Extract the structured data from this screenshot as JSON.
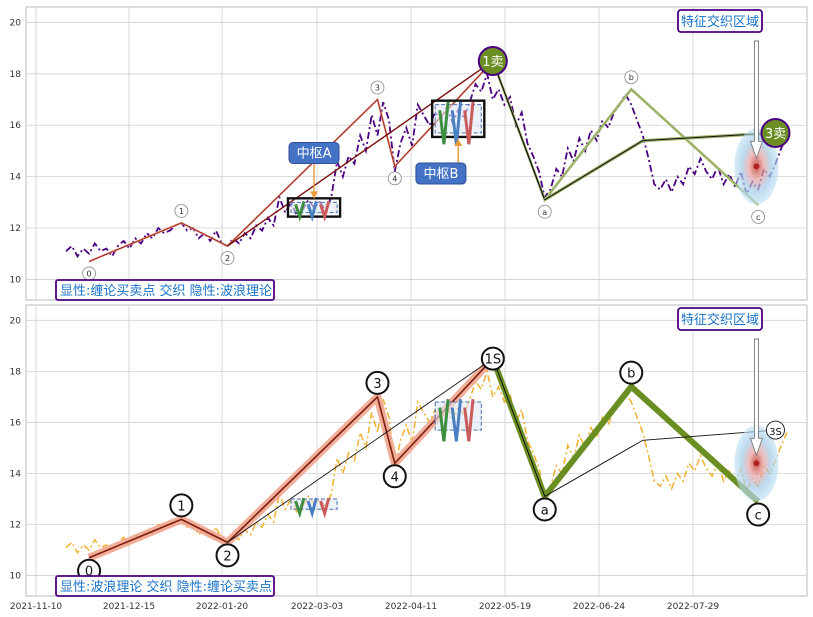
{
  "chart_data": {
    "type": "line",
    "x_ticks": [
      "2021-11-10",
      "2021-12-15",
      "2022-01-20",
      "2022-03-03",
      "2022-04-11",
      "2022-05-19",
      "2022-06-24",
      "2022-07-29"
    ],
    "y_ticks": [
      10,
      12,
      14,
      16,
      18,
      20
    ],
    "ylim": [
      9.2,
      20.6
    ],
    "panels": [
      {
        "id": "top",
        "caption": "显性:缠论买卖点 交织 隐性:波浪理论",
        "region_label": "特征交织区域",
        "price_series_color": "#4b0082",
        "wave_points": [
          {
            "label": "0",
            "x": 4,
            "y": 10.7
          },
          {
            "label": "1",
            "x": 20,
            "y": 12.2
          },
          {
            "label": "2",
            "x": 28,
            "y": 11.3
          },
          {
            "label": "3",
            "x": 54,
            "y": 17.0
          },
          {
            "label": "4",
            "x": 57,
            "y": 14.4
          },
          {
            "label": "1卖",
            "x": 74,
            "y": 18.5
          },
          {
            "label": "a",
            "x": 83,
            "y": 13.1
          },
          {
            "label": "b",
            "x": 98,
            "y": 17.4
          },
          {
            "label": "c",
            "x": 120,
            "y": 12.9
          },
          {
            "label": "3卖",
            "x": 123,
            "y": 15.7
          }
        ],
        "pivots": [
          {
            "label": "中枢A",
            "x_start": 39,
            "x_end": 47,
            "y_low": 12.6,
            "y_high": 13.0
          },
          {
            "label": "中枢B",
            "x_start": 64,
            "x_end": 72,
            "y_low": 15.7,
            "y_high": 16.8
          }
        ],
        "sell_points": [
          {
            "label": "1卖",
            "x": 74,
            "y": 18.5
          },
          {
            "label": "3卖",
            "x": 123,
            "y": 15.7
          }
        ]
      },
      {
        "id": "bottom",
        "caption": "显性:波浪理论 交织 隐性:缠论买卖点",
        "region_label": "特征交织区域",
        "price_series_color": "#f0b030",
        "wave_points": [
          {
            "label": "0",
            "x": 4,
            "y": 10.7
          },
          {
            "label": "1",
            "x": 20,
            "y": 12.2
          },
          {
            "label": "2",
            "x": 28,
            "y": 11.3
          },
          {
            "label": "3",
            "x": 54,
            "y": 17.0
          },
          {
            "label": "4",
            "x": 57,
            "y": 14.4
          },
          {
            "label": "1S",
            "x": 74,
            "y": 18.5
          },
          {
            "label": "a",
            "x": 83,
            "y": 13.1
          },
          {
            "label": "b",
            "x": 98,
            "y": 17.4
          },
          {
            "label": "c",
            "x": 120,
            "y": 12.9
          },
          {
            "label": "3S",
            "x": 123,
            "y": 15.7
          }
        ]
      }
    ],
    "price": [
      11.1,
      11.3,
      10.9,
      11.2,
      11.0,
      11.4,
      11.1,
      11.2,
      10.9,
      11.3,
      11.5,
      11.2,
      11.6,
      11.4,
      11.8,
      11.6,
      12.0,
      11.8,
      11.9,
      12.1,
      12.2,
      11.9,
      12.0,
      11.6,
      11.8,
      11.5,
      11.9,
      11.4,
      11.3,
      11.6,
      11.4,
      11.8,
      11.6,
      12.1,
      11.9,
      12.4,
      12.1,
      13.2,
      12.6,
      13.0,
      12.5,
      12.7,
      13.1,
      12.8,
      13.0,
      12.7,
      13.2,
      14.6,
      14.0,
      14.8,
      14.5,
      15.6,
      15.0,
      16.4,
      15.6,
      16.9,
      16.2,
      14.2,
      15.3,
      15.9,
      15.2,
      16.8,
      16.4,
      16.0,
      16.5,
      16.2,
      16.7,
      16.1,
      16.6,
      16.3,
      16.9,
      17.6,
      17.3,
      18.0,
      17.0,
      17.4,
      16.8,
      17.1,
      16.0,
      16.5,
      15.3,
      14.8,
      14.2,
      13.2,
      13.5,
      14.3,
      14.0,
      15.1,
      14.6,
      15.5,
      15.0,
      15.8,
      15.4,
      16.2,
      15.9,
      16.5,
      16.8,
      17.2,
      16.8,
      16.2,
      15.6,
      14.7,
      13.7,
      13.5,
      13.9,
      13.4,
      14.0,
      13.7,
      14.4,
      14.1,
      14.7,
      14.2,
      13.9,
      14.4,
      13.7,
      14.1,
      13.6,
      14.2,
      13.3,
      13.8,
      13.5,
      14.3,
      14.0,
      14.5,
      15.1,
      15.6
    ],
    "grid": true
  }
}
